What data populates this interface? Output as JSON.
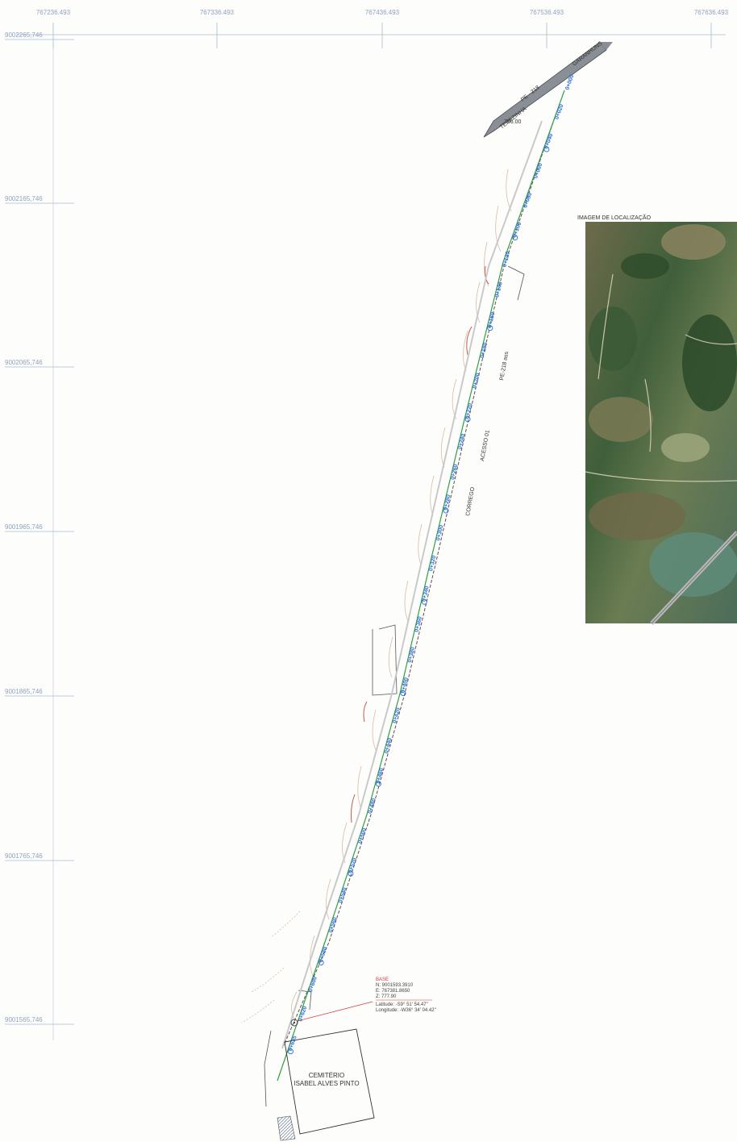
{
  "grid": {
    "eastings": [
      "767236.493",
      "767336.493",
      "767436.493",
      "767536.493",
      "767636.493"
    ],
    "northings": [
      "9002265,746",
      "9002165,746",
      "9002065,746",
      "9001965,746",
      "9001865,746",
      "9001765,746",
      "9001565,746"
    ]
  },
  "road": {
    "name": "PE - 218",
    "towns": [
      "TEREZINHA",
      "GARANHUNS"
    ],
    "elevation": "796.00"
  },
  "access_labels": [
    "PE-218 ass",
    "ACESSO 01",
    "CORREGO"
  ],
  "stations": [
    "0+000",
    "0+020",
    "0+040",
    "0+060",
    "0+080",
    "0+100",
    "0+120",
    "0+140",
    "0+160",
    "0+180",
    "0+200",
    "0+220",
    "0+240",
    "0+260",
    "0+280",
    "0+300",
    "0+320",
    "0+340",
    "0+360",
    "0+380",
    "0+400",
    "0+420",
    "0+440",
    "0+460",
    "0+480",
    "0+500",
    "0+520",
    "0+540",
    "0+560",
    "0+580",
    "0+600",
    "0+620",
    "0+635"
  ],
  "base": {
    "title": "BASE",
    "n": "N: 9001593.3910",
    "e": "E: 767381.8650",
    "z": "Z: 777.90",
    "lat": "Latitude: -S9° 51' 54.47\"",
    "lon": "Longitude: -W36° 34' 04.42\""
  },
  "landmark": {
    "line1": "CEMITÉRIO",
    "line2": "ISABEL ALVES PINTO"
  },
  "inset": {
    "title": "IMAGEM DE LOCALIZAÇÃO"
  },
  "colors": {
    "grid": "#9fb3cf",
    "centerline": "#2f9e44",
    "stations": "#2a6fd6",
    "base": "#d33c3c",
    "terrain": "#c8a98a"
  }
}
